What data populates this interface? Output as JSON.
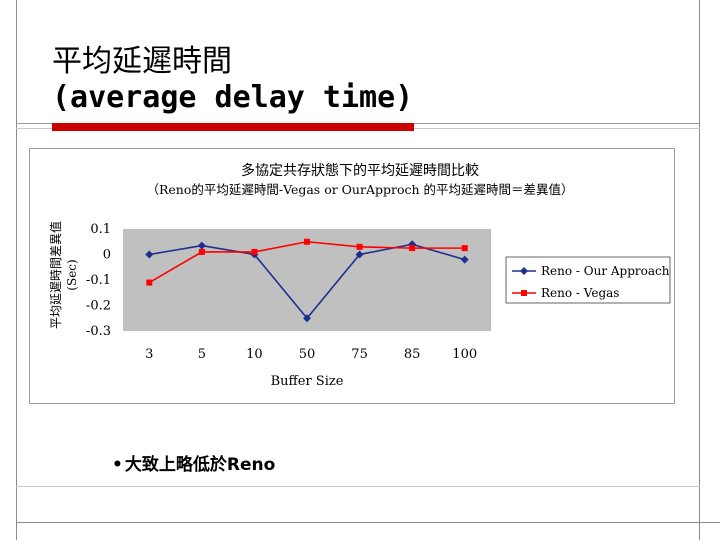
{
  "slide": {
    "title_line1": "平均延遲時間",
    "title_line2": "(average delay time)",
    "bullet_text": "大致上略低於Reno",
    "accent_color": "#cc0000"
  },
  "chart_data": {
    "type": "line",
    "title": "多協定共存狀態下的平均延遲時間比較",
    "subtitle": "（Reno的平均延遲時間-Vegas or OurApproch 的平均延遲時間＝差異值）",
    "ylabel": "平均延遲時間差異值",
    "ylabel_unit": "(Sec)",
    "xlabel": "Buffer Size",
    "categories": [
      "3",
      "5",
      "10",
      "50",
      "75",
      "85",
      "100"
    ],
    "ylim": [
      -0.3,
      0.1
    ],
    "yticks": [
      0.1,
      0,
      -0.1,
      -0.2,
      -0.3
    ],
    "ytick_labels": [
      "0.1",
      "0",
      "-0.1",
      "-0.2",
      "-0.3"
    ],
    "grid": false,
    "legend_position": "right",
    "plot_background": "#c0c0c0",
    "series": [
      {
        "name": "Reno - Our Approach",
        "marker": "diamond",
        "color": "#1f2f8f",
        "values": [
          0.0,
          0.035,
          0.0,
          -0.25,
          0.0,
          0.04,
          -0.02
        ]
      },
      {
        "name": "Reno - Vegas",
        "marker": "square",
        "color": "#ff0000",
        "values": [
          -0.11,
          0.01,
          0.01,
          0.05,
          0.03,
          0.025,
          0.025
        ]
      }
    ]
  }
}
